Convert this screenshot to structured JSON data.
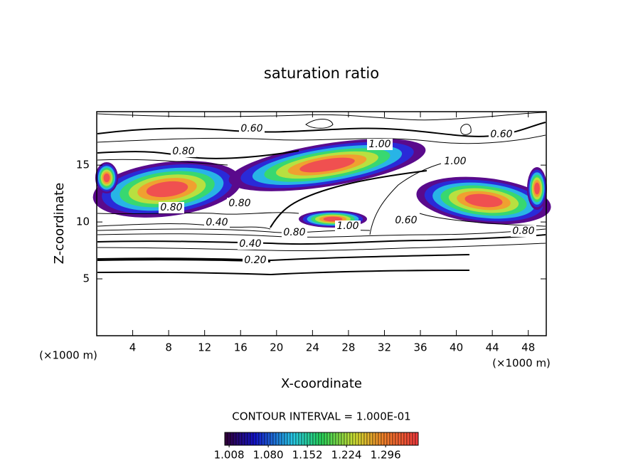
{
  "chart_data": {
    "type": "contour",
    "title": "saturation ratio",
    "x_label": "X-coordinate",
    "y_label": "Z-coordinate",
    "x_unit_label": "(×1000 m)",
    "y_unit_label": "(×1000 m)",
    "xlim": [
      0,
      50
    ],
    "ylim": [
      0,
      19.7
    ],
    "xticks": [
      4,
      8,
      12,
      16,
      20,
      24,
      28,
      32,
      36,
      40,
      44,
      48
    ],
    "yticks": [
      5,
      10,
      15
    ],
    "contour_labels": [
      {
        "value": 0.6,
        "label": "0.60"
      },
      {
        "value": 0.6,
        "label": "0.60"
      },
      {
        "value": 0.8,
        "label": "0.80"
      },
      {
        "value": 1.0,
        "label": "1.00"
      },
      {
        "value": 1.0,
        "label": "1.00"
      },
      {
        "value": 0.8,
        "label": "0.80"
      },
      {
        "value": 0.4,
        "label": "0.40"
      },
      {
        "value": 0.8,
        "label": "0.80"
      },
      {
        "value": 1.0,
        "label": "1.00"
      },
      {
        "value": 0.6,
        "label": "0.60"
      },
      {
        "value": 0.8,
        "label": "0.80"
      },
      {
        "value": 0.4,
        "label": "0.40"
      },
      {
        "value": 0.2,
        "label": "0.20"
      },
      {
        "value": 0.8,
        "label": "0.80"
      }
    ],
    "contour_interval_label": "CONTOUR INTERVAL = 1.000E-01",
    "colorbar_lim": [
      1.0,
      1.356
    ],
    "colorbar_ticks": [
      1.008,
      {
        "value": 1.08,
        "label": "1.080"
      },
      1.152,
      1.224,
      1.296
    ]
  }
}
